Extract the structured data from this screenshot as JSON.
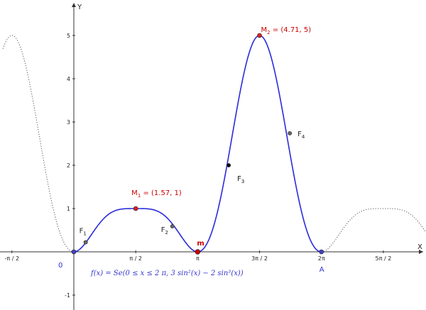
{
  "colors": {
    "curve": "#2b2bdc",
    "dotted": "#555555",
    "max_point": "#dd2222",
    "inflection_point": "#666666",
    "special_point": "#000000",
    "red_text": "#cc0000",
    "blue_text": "#3333cc",
    "axis": "#333333"
  },
  "chart_data": {
    "type": "line",
    "title": "",
    "xlabel": "X",
    "ylabel": "Y",
    "xlim": [
      -1.8,
      9.7
    ],
    "ylim": [
      -1.4,
      5.8
    ],
    "x_ticks": [
      {
        "value": -1.5708,
        "label": "-π / 2"
      },
      {
        "value": 1.5708,
        "label": "π / 2"
      },
      {
        "value": 3.1416,
        "label": "π"
      },
      {
        "value": 4.7124,
        "label": "3π / 2"
      },
      {
        "value": 6.2832,
        "label": "2π"
      },
      {
        "value": 7.854,
        "label": "5π / 2"
      }
    ],
    "y_ticks": [
      {
        "value": -1,
        "label": "-1"
      },
      {
        "value": 1,
        "label": "1"
      },
      {
        "value": 2,
        "label": "2"
      },
      {
        "value": 3,
        "label": "3"
      },
      {
        "value": 4,
        "label": "4"
      },
      {
        "value": 5,
        "label": "5"
      }
    ],
    "function_label": "f(x)  =  Se(0 ≤ x ≤ 2 π, 3 sin²(x) − 2 sin³(x))",
    "series": [
      {
        "style": "solid",
        "domain": [
          0,
          6.2832
        ],
        "points": [
          [
            0,
            0
          ],
          [
            0.3,
            0.22
          ],
          [
            0.6,
            0.67
          ],
          [
            0.9,
            1.05
          ],
          [
            1.2,
            1.0
          ],
          [
            1.5708,
            1
          ],
          [
            1.9,
            0.98
          ],
          [
            2.2,
            0.99
          ],
          [
            2.5,
            0.59
          ],
          [
            2.8,
            0.29
          ],
          [
            3.1416,
            0
          ],
          [
            3.5,
            0.46
          ],
          [
            3.93,
            2.0
          ],
          [
            4.3,
            4.14
          ],
          [
            4.7124,
            5
          ],
          [
            5.1,
            4.43
          ],
          [
            5.5,
            2.81
          ],
          [
            5.9,
            1.11
          ],
          [
            6.2832,
            0
          ]
        ]
      },
      {
        "style": "dotted",
        "domain": [
          -1.8,
          0
        ],
        "points": [
          [
            -1.8,
            4.33
          ],
          [
            -1.5708,
            5
          ],
          [
            -1.2,
            4.4
          ],
          [
            -0.8,
            2.49
          ],
          [
            -0.4,
            1.06
          ],
          [
            0,
            0
          ]
        ]
      },
      {
        "style": "dotted",
        "domain": [
          6.2832,
          9.7
        ],
        "points": [
          [
            6.2832,
            0
          ],
          [
            6.7,
            0.96
          ],
          [
            7.2,
            0.97
          ],
          [
            7.854,
            1
          ],
          [
            8.4,
            0.99
          ],
          [
            9.0,
            0.85
          ],
          [
            9.7,
            0.45
          ]
        ]
      }
    ],
    "points": [
      {
        "id": "M1",
        "label_main": "M",
        "label_sub": "1",
        "label_suffix": " = (1.57, 1)",
        "x": 1.5708,
        "y": 1,
        "kind": "max"
      },
      {
        "id": "M2",
        "label_main": "M",
        "label_sub": "2",
        "label_suffix": " = (4.71, 5)",
        "x": 4.7124,
        "y": 5,
        "kind": "max"
      },
      {
        "id": "F1",
        "label_main": "F",
        "label_sub": "1",
        "label_suffix": "",
        "x": 0.3,
        "y": 0.22,
        "kind": "inflection"
      },
      {
        "id": "F2",
        "label_main": "F",
        "label_sub": "2",
        "label_suffix": "",
        "x": 2.5,
        "y": 0.59,
        "kind": "inflection"
      },
      {
        "id": "F3",
        "label_main": "F",
        "label_sub": "3",
        "label_suffix": "",
        "x": 3.93,
        "y": 2.0,
        "kind": "special"
      },
      {
        "id": "F4",
        "label_main": "F",
        "label_sub": "4",
        "label_suffix": "",
        "x": 5.48,
        "y": 2.74,
        "kind": "inflection"
      },
      {
        "id": "m",
        "label_main": "m",
        "label_sub": "",
        "label_suffix": "",
        "x": 3.1416,
        "y": 0,
        "kind": "min"
      },
      {
        "id": "O",
        "label_main": "0",
        "label_sub": "",
        "label_suffix": "",
        "x": 0,
        "y": 0,
        "kind": "endpoint"
      },
      {
        "id": "A",
        "label_main": "A",
        "label_sub": "",
        "label_suffix": "",
        "x": 6.2832,
        "y": 0,
        "kind": "endpoint"
      }
    ]
  }
}
